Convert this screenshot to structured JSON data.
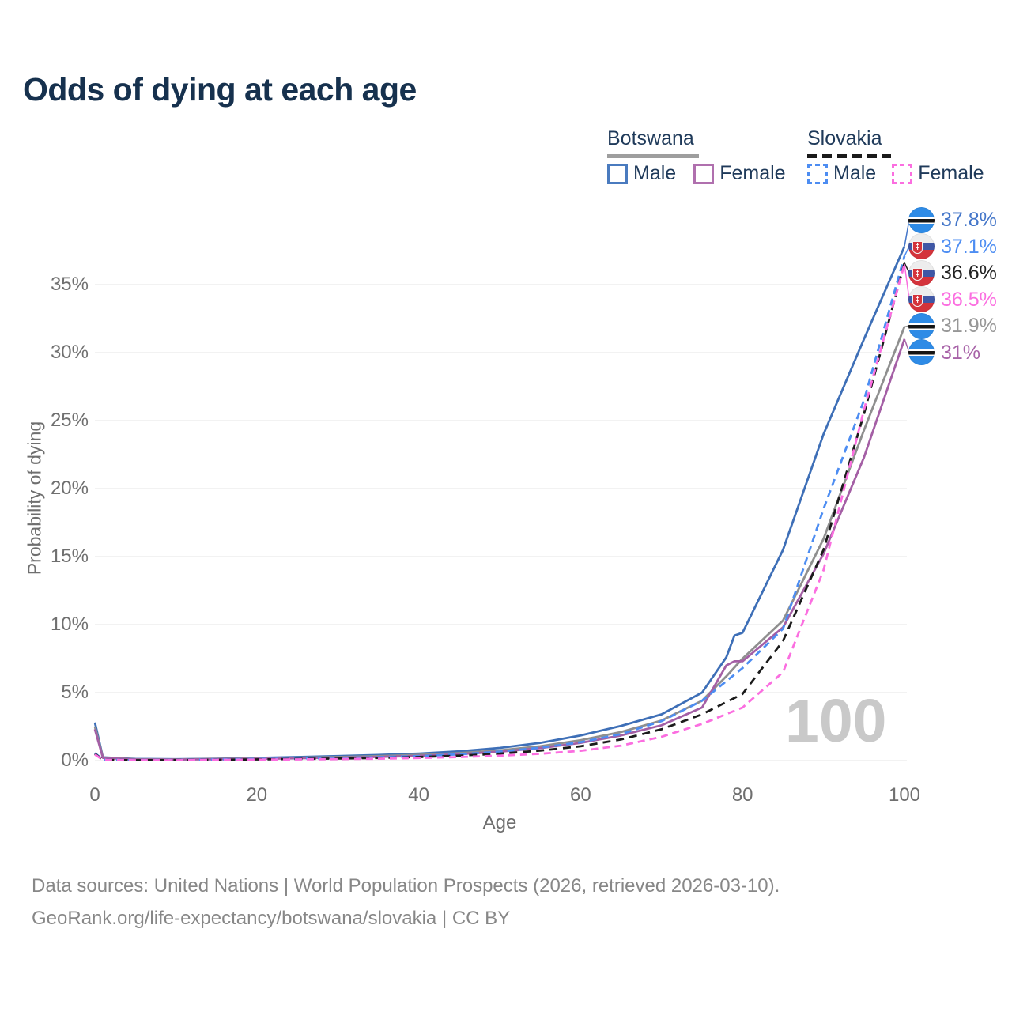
{
  "page": {
    "title": "Odds of dying at each age"
  },
  "legend": {
    "botswana": {
      "title": "Botswana",
      "male": "Male",
      "female": "Female",
      "line_style": "solid"
    },
    "slovakia": {
      "title": "Slovakia",
      "male": "Male",
      "female": "Female",
      "line_style": "dashed"
    },
    "colors": {
      "botswana_male": "#4a7bbf",
      "botswana_female": "#b070ae",
      "slovakia_male": "#4d8df2",
      "slovakia_female": "#fb6ee0"
    }
  },
  "watermark": "100",
  "footer": {
    "line1": "Data sources: United Nations | World Population Prospects (2026, retrieved 2026-03-10).",
    "line2": "GeoRank.org/life-expectancy/botswana/slovakia | CC BY"
  },
  "chart_data": {
    "type": "line",
    "title": "Odds of dying at each age",
    "xlabel": "Age",
    "ylabel": "Probability of dying",
    "xlim": [
      0,
      100
    ],
    "ylim": [
      0,
      38.5
    ],
    "xticks": [
      0,
      20,
      40,
      60,
      80,
      100
    ],
    "yticks": [
      0,
      5,
      10,
      15,
      20,
      25,
      30,
      35
    ],
    "ytick_suffix": "%",
    "grid": "horizontal",
    "grid_color": "#ebebeb",
    "legend_position": "top-right",
    "sk_emblem_glyph": "‡",
    "series": [
      {
        "id": "botswana-male",
        "name": "Botswana Male",
        "country": "botswana",
        "color": "#3e6fb7",
        "dash": null,
        "points": [
          [
            0,
            2.8
          ],
          [
            1,
            0.24
          ],
          [
            5,
            0.12
          ],
          [
            10,
            0.1
          ],
          [
            15,
            0.14
          ],
          [
            20,
            0.2
          ],
          [
            25,
            0.26
          ],
          [
            30,
            0.33
          ],
          [
            35,
            0.41
          ],
          [
            40,
            0.52
          ],
          [
            45,
            0.68
          ],
          [
            50,
            0.93
          ],
          [
            55,
            1.3
          ],
          [
            60,
            1.85
          ],
          [
            65,
            2.55
          ],
          [
            70,
            3.4
          ],
          [
            75,
            5.0
          ],
          [
            78,
            7.6
          ],
          [
            79,
            9.2
          ],
          [
            80,
            9.4
          ],
          [
            85,
            15.5
          ],
          [
            90,
            24.0
          ],
          [
            95,
            31.0
          ],
          [
            100,
            37.8
          ]
        ]
      },
      {
        "id": "botswana-both",
        "name": "Botswana (both sexes)",
        "country": "botswana",
        "color": "#8f8f8f",
        "dash": null,
        "points": [
          [
            0,
            2.5
          ],
          [
            1,
            0.22
          ],
          [
            5,
            0.1
          ],
          [
            10,
            0.09
          ],
          [
            15,
            0.12
          ],
          [
            20,
            0.16
          ],
          [
            25,
            0.21
          ],
          [
            30,
            0.26
          ],
          [
            35,
            0.33
          ],
          [
            40,
            0.42
          ],
          [
            45,
            0.55
          ],
          [
            50,
            0.75
          ],
          [
            55,
            1.05
          ],
          [
            60,
            1.5
          ],
          [
            65,
            2.1
          ],
          [
            70,
            2.95
          ],
          [
            75,
            4.4
          ],
          [
            78,
            6.2
          ],
          [
            80,
            7.5
          ],
          [
            85,
            10.3
          ],
          [
            90,
            16.3
          ],
          [
            95,
            24.3
          ],
          [
            100,
            31.9
          ]
        ]
      },
      {
        "id": "botswana-female",
        "name": "Botswana Female",
        "country": "botswana",
        "color": "#a45fa5",
        "dash": null,
        "points": [
          [
            0,
            2.3
          ],
          [
            1,
            0.2
          ],
          [
            5,
            0.09
          ],
          [
            10,
            0.08
          ],
          [
            15,
            0.1
          ],
          [
            20,
            0.13
          ],
          [
            25,
            0.17
          ],
          [
            30,
            0.21
          ],
          [
            35,
            0.27
          ],
          [
            40,
            0.35
          ],
          [
            45,
            0.47
          ],
          [
            50,
            0.65
          ],
          [
            55,
            0.92
          ],
          [
            60,
            1.3
          ],
          [
            65,
            1.85
          ],
          [
            70,
            2.6
          ],
          [
            75,
            3.9
          ],
          [
            78,
            7.0
          ],
          [
            79,
            7.3
          ],
          [
            80,
            7.3
          ],
          [
            85,
            9.8
          ],
          [
            90,
            15.2
          ],
          [
            95,
            22.3
          ],
          [
            100,
            31.0
          ]
        ]
      },
      {
        "id": "slovakia-male",
        "name": "Slovakia Male",
        "country": "slovakia",
        "color": "#4d8df2",
        "dash": "9 6",
        "points": [
          [
            0,
            0.55
          ],
          [
            1,
            0.06
          ],
          [
            5,
            0.04
          ],
          [
            10,
            0.05
          ],
          [
            15,
            0.08
          ],
          [
            20,
            0.12
          ],
          [
            25,
            0.15
          ],
          [
            30,
            0.19
          ],
          [
            35,
            0.25
          ],
          [
            40,
            0.33
          ],
          [
            45,
            0.46
          ],
          [
            50,
            0.66
          ],
          [
            55,
            0.95
          ],
          [
            60,
            1.35
          ],
          [
            65,
            1.95
          ],
          [
            70,
            2.9
          ],
          [
            75,
            4.4
          ],
          [
            80,
            6.8
          ],
          [
            85,
            9.7
          ],
          [
            90,
            18.5
          ],
          [
            95,
            26.5
          ],
          [
            100,
            37.1
          ]
        ]
      },
      {
        "id": "slovakia-both",
        "name": "Slovakia (both sexes)",
        "country": "slovakia",
        "color": "#1b1b1b",
        "dash": "10 7",
        "points": [
          [
            0,
            0.5
          ],
          [
            1,
            0.05
          ],
          [
            5,
            0.03
          ],
          [
            10,
            0.04
          ],
          [
            15,
            0.06
          ],
          [
            20,
            0.09
          ],
          [
            25,
            0.12
          ],
          [
            30,
            0.15
          ],
          [
            35,
            0.19
          ],
          [
            40,
            0.26
          ],
          [
            45,
            0.36
          ],
          [
            50,
            0.51
          ],
          [
            55,
            0.73
          ],
          [
            60,
            1.05
          ],
          [
            65,
            1.55
          ],
          [
            70,
            2.3
          ],
          [
            75,
            3.4
          ],
          [
            80,
            4.9
          ],
          [
            85,
            8.8
          ],
          [
            90,
            15.5
          ],
          [
            95,
            25.5
          ],
          [
            100,
            36.6
          ]
        ]
      },
      {
        "id": "slovakia-female",
        "name": "Slovakia Female",
        "country": "slovakia",
        "color": "#fb6ee0",
        "dash": "9 6",
        "points": [
          [
            0,
            0.45
          ],
          [
            1,
            0.05
          ],
          [
            5,
            0.03
          ],
          [
            10,
            0.03
          ],
          [
            15,
            0.05
          ],
          [
            20,
            0.07
          ],
          [
            25,
            0.09
          ],
          [
            30,
            0.11
          ],
          [
            35,
            0.14
          ],
          [
            40,
            0.19
          ],
          [
            45,
            0.26
          ],
          [
            50,
            0.36
          ],
          [
            55,
            0.5
          ],
          [
            60,
            0.72
          ],
          [
            65,
            1.1
          ],
          [
            70,
            1.75
          ],
          [
            75,
            2.7
          ],
          [
            80,
            3.9
          ],
          [
            85,
            6.5
          ],
          [
            90,
            14.0
          ],
          [
            95,
            25.8
          ],
          [
            100,
            36.5
          ]
        ]
      }
    ],
    "end_labels": [
      {
        "text": "37.8%",
        "value": 37.8,
        "country": "botswana",
        "color": "#4476c9",
        "series": "botswana-male"
      },
      {
        "text": "37.1%",
        "value": 37.1,
        "country": "slovakia",
        "color": "#4d8df2",
        "series": "slovakia-male"
      },
      {
        "text": "36.6%",
        "value": 36.6,
        "country": "slovakia",
        "color": "#222222",
        "series": "slovakia-both"
      },
      {
        "text": "36.5%",
        "value": 36.5,
        "country": "slovakia",
        "color": "#fb6ee0",
        "series": "slovakia-female"
      },
      {
        "text": "31.9%",
        "value": 31.9,
        "country": "botswana",
        "color": "#979797",
        "series": "botswana-both"
      },
      {
        "text": "31%",
        "value": 31.0,
        "country": "botswana",
        "color": "#a863a8",
        "series": "botswana-female"
      }
    ]
  }
}
